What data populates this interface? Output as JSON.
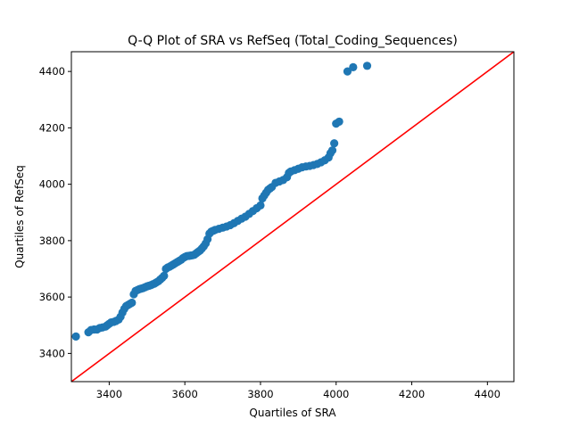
{
  "chart_data": {
    "type": "scatter",
    "title": "Q-Q Plot of SRA vs RefSeq (Total_Coding_Sequences)",
    "xlabel": "Quartiles of SRA",
    "ylabel": "Quartiles of RefSeq",
    "xlim": [
      3300,
      4470
    ],
    "ylim": [
      3300,
      4470
    ],
    "xticks": [
      3400,
      3600,
      3800,
      4000,
      4200,
      4400
    ],
    "yticks": [
      3400,
      3600,
      3800,
      4000,
      4200,
      4400
    ],
    "grid": false,
    "points_color": "#1f77b4",
    "reference_line": {
      "color": "#ff0000",
      "from": [
        3300,
        3300
      ],
      "to": [
        4470,
        4470
      ]
    },
    "series": [
      {
        "points": [
          [
            3312,
            3460
          ],
          [
            3345,
            3475
          ],
          [
            3352,
            3483
          ],
          [
            3360,
            3485
          ],
          [
            3368,
            3485
          ],
          [
            3375,
            3490
          ],
          [
            3382,
            3492
          ],
          [
            3390,
            3495
          ],
          [
            3395,
            3500
          ],
          [
            3400,
            3505
          ],
          [
            3405,
            3510
          ],
          [
            3412,
            3512
          ],
          [
            3418,
            3515
          ],
          [
            3425,
            3520
          ],
          [
            3430,
            3530
          ],
          [
            3435,
            3545
          ],
          [
            3440,
            3558
          ],
          [
            3445,
            3568
          ],
          [
            3450,
            3572
          ],
          [
            3455,
            3576
          ],
          [
            3460,
            3580
          ],
          [
            3465,
            3610
          ],
          [
            3470,
            3622
          ],
          [
            3475,
            3625
          ],
          [
            3480,
            3628
          ],
          [
            3485,
            3630
          ],
          [
            3490,
            3632
          ],
          [
            3495,
            3635
          ],
          [
            3500,
            3638
          ],
          [
            3505,
            3640
          ],
          [
            3510,
            3642
          ],
          [
            3515,
            3645
          ],
          [
            3520,
            3648
          ],
          [
            3525,
            3652
          ],
          [
            3530,
            3656
          ],
          [
            3535,
            3662
          ],
          [
            3540,
            3668
          ],
          [
            3545,
            3675
          ],
          [
            3550,
            3700
          ],
          [
            3555,
            3705
          ],
          [
            3560,
            3708
          ],
          [
            3565,
            3712
          ],
          [
            3570,
            3716
          ],
          [
            3575,
            3720
          ],
          [
            3580,
            3724
          ],
          [
            3585,
            3728
          ],
          [
            3590,
            3732
          ],
          [
            3595,
            3738
          ],
          [
            3600,
            3742
          ],
          [
            3605,
            3745
          ],
          [
            3610,
            3746
          ],
          [
            3615,
            3747
          ],
          [
            3620,
            3748
          ],
          [
            3625,
            3750
          ],
          [
            3630,
            3755
          ],
          [
            3635,
            3760
          ],
          [
            3640,
            3765
          ],
          [
            3645,
            3772
          ],
          [
            3650,
            3780
          ],
          [
            3655,
            3790
          ],
          [
            3660,
            3805
          ],
          [
            3665,
            3825
          ],
          [
            3670,
            3832
          ],
          [
            3675,
            3835
          ],
          [
            3680,
            3838
          ],
          [
            3690,
            3842
          ],
          [
            3700,
            3846
          ],
          [
            3710,
            3850
          ],
          [
            3720,
            3855
          ],
          [
            3730,
            3862
          ],
          [
            3740,
            3870
          ],
          [
            3750,
            3878
          ],
          [
            3760,
            3885
          ],
          [
            3770,
            3895
          ],
          [
            3780,
            3905
          ],
          [
            3790,
            3915
          ],
          [
            3800,
            3925
          ],
          [
            3805,
            3950
          ],
          [
            3810,
            3960
          ],
          [
            3815,
            3970
          ],
          [
            3820,
            3980
          ],
          [
            3825,
            3985
          ],
          [
            3830,
            3990
          ],
          [
            3840,
            4005
          ],
          [
            3850,
            4010
          ],
          [
            3860,
            4015
          ],
          [
            3870,
            4025
          ],
          [
            3875,
            4040
          ],
          [
            3880,
            4045
          ],
          [
            3890,
            4050
          ],
          [
            3900,
            4055
          ],
          [
            3910,
            4060
          ],
          [
            3920,
            4063
          ],
          [
            3930,
            4065
          ],
          [
            3940,
            4068
          ],
          [
            3950,
            4072
          ],
          [
            3960,
            4078
          ],
          [
            3970,
            4085
          ],
          [
            3980,
            4095
          ],
          [
            3985,
            4110
          ],
          [
            3990,
            4120
          ],
          [
            3995,
            4145
          ],
          [
            4000,
            4215
          ],
          [
            4008,
            4222
          ],
          [
            4030,
            4400
          ],
          [
            4045,
            4415
          ],
          [
            4082,
            4420
          ]
        ]
      }
    ]
  }
}
